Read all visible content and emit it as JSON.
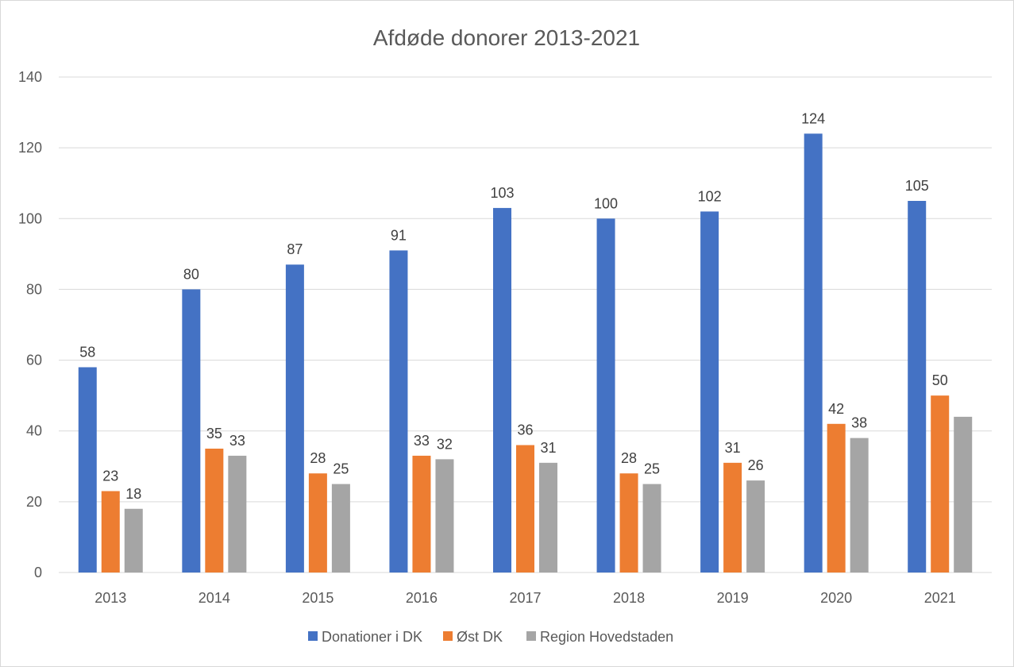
{
  "chart_data": {
    "type": "bar",
    "title": "Afdøde donorer 2013-2021",
    "xlabel": "",
    "ylabel": "",
    "categories": [
      "2013",
      "2014",
      "2015",
      "2016",
      "2017",
      "2018",
      "2019",
      "2020",
      "2021"
    ],
    "series": [
      {
        "name": "Donationer i DK",
        "color": "#4472c4",
        "values": [
          58,
          80,
          87,
          91,
          103,
          100,
          102,
          124,
          105
        ]
      },
      {
        "name": "Øst DK",
        "color": "#ed7d31",
        "values": [
          23,
          35,
          28,
          33,
          36,
          28,
          31,
          42,
          50
        ]
      },
      {
        "name": "Region Hovedstaden",
        "color": "#a5a5a5",
        "values": [
          18,
          33,
          25,
          32,
          31,
          25,
          26,
          38,
          44
        ]
      }
    ],
    "data_labels": [
      [
        "58",
        "80",
        "87",
        "91",
        "103",
        "100",
        "102",
        "124",
        "105"
      ],
      [
        "23",
        "35",
        "28",
        "33",
        "36",
        "28",
        "31",
        "42",
        "50"
      ],
      [
        "18",
        "33",
        "25",
        "32",
        "31",
        "25",
        "26",
        "38",
        ""
      ]
    ],
    "ylim": [
      0,
      140
    ],
    "yticks": [
      "0",
      "20",
      "40",
      "60",
      "80",
      "100",
      "120",
      "140"
    ],
    "grid": true,
    "legend": "bottom",
    "colors": {
      "gridline": "#d9d9d9",
      "text": "#595959"
    }
  }
}
